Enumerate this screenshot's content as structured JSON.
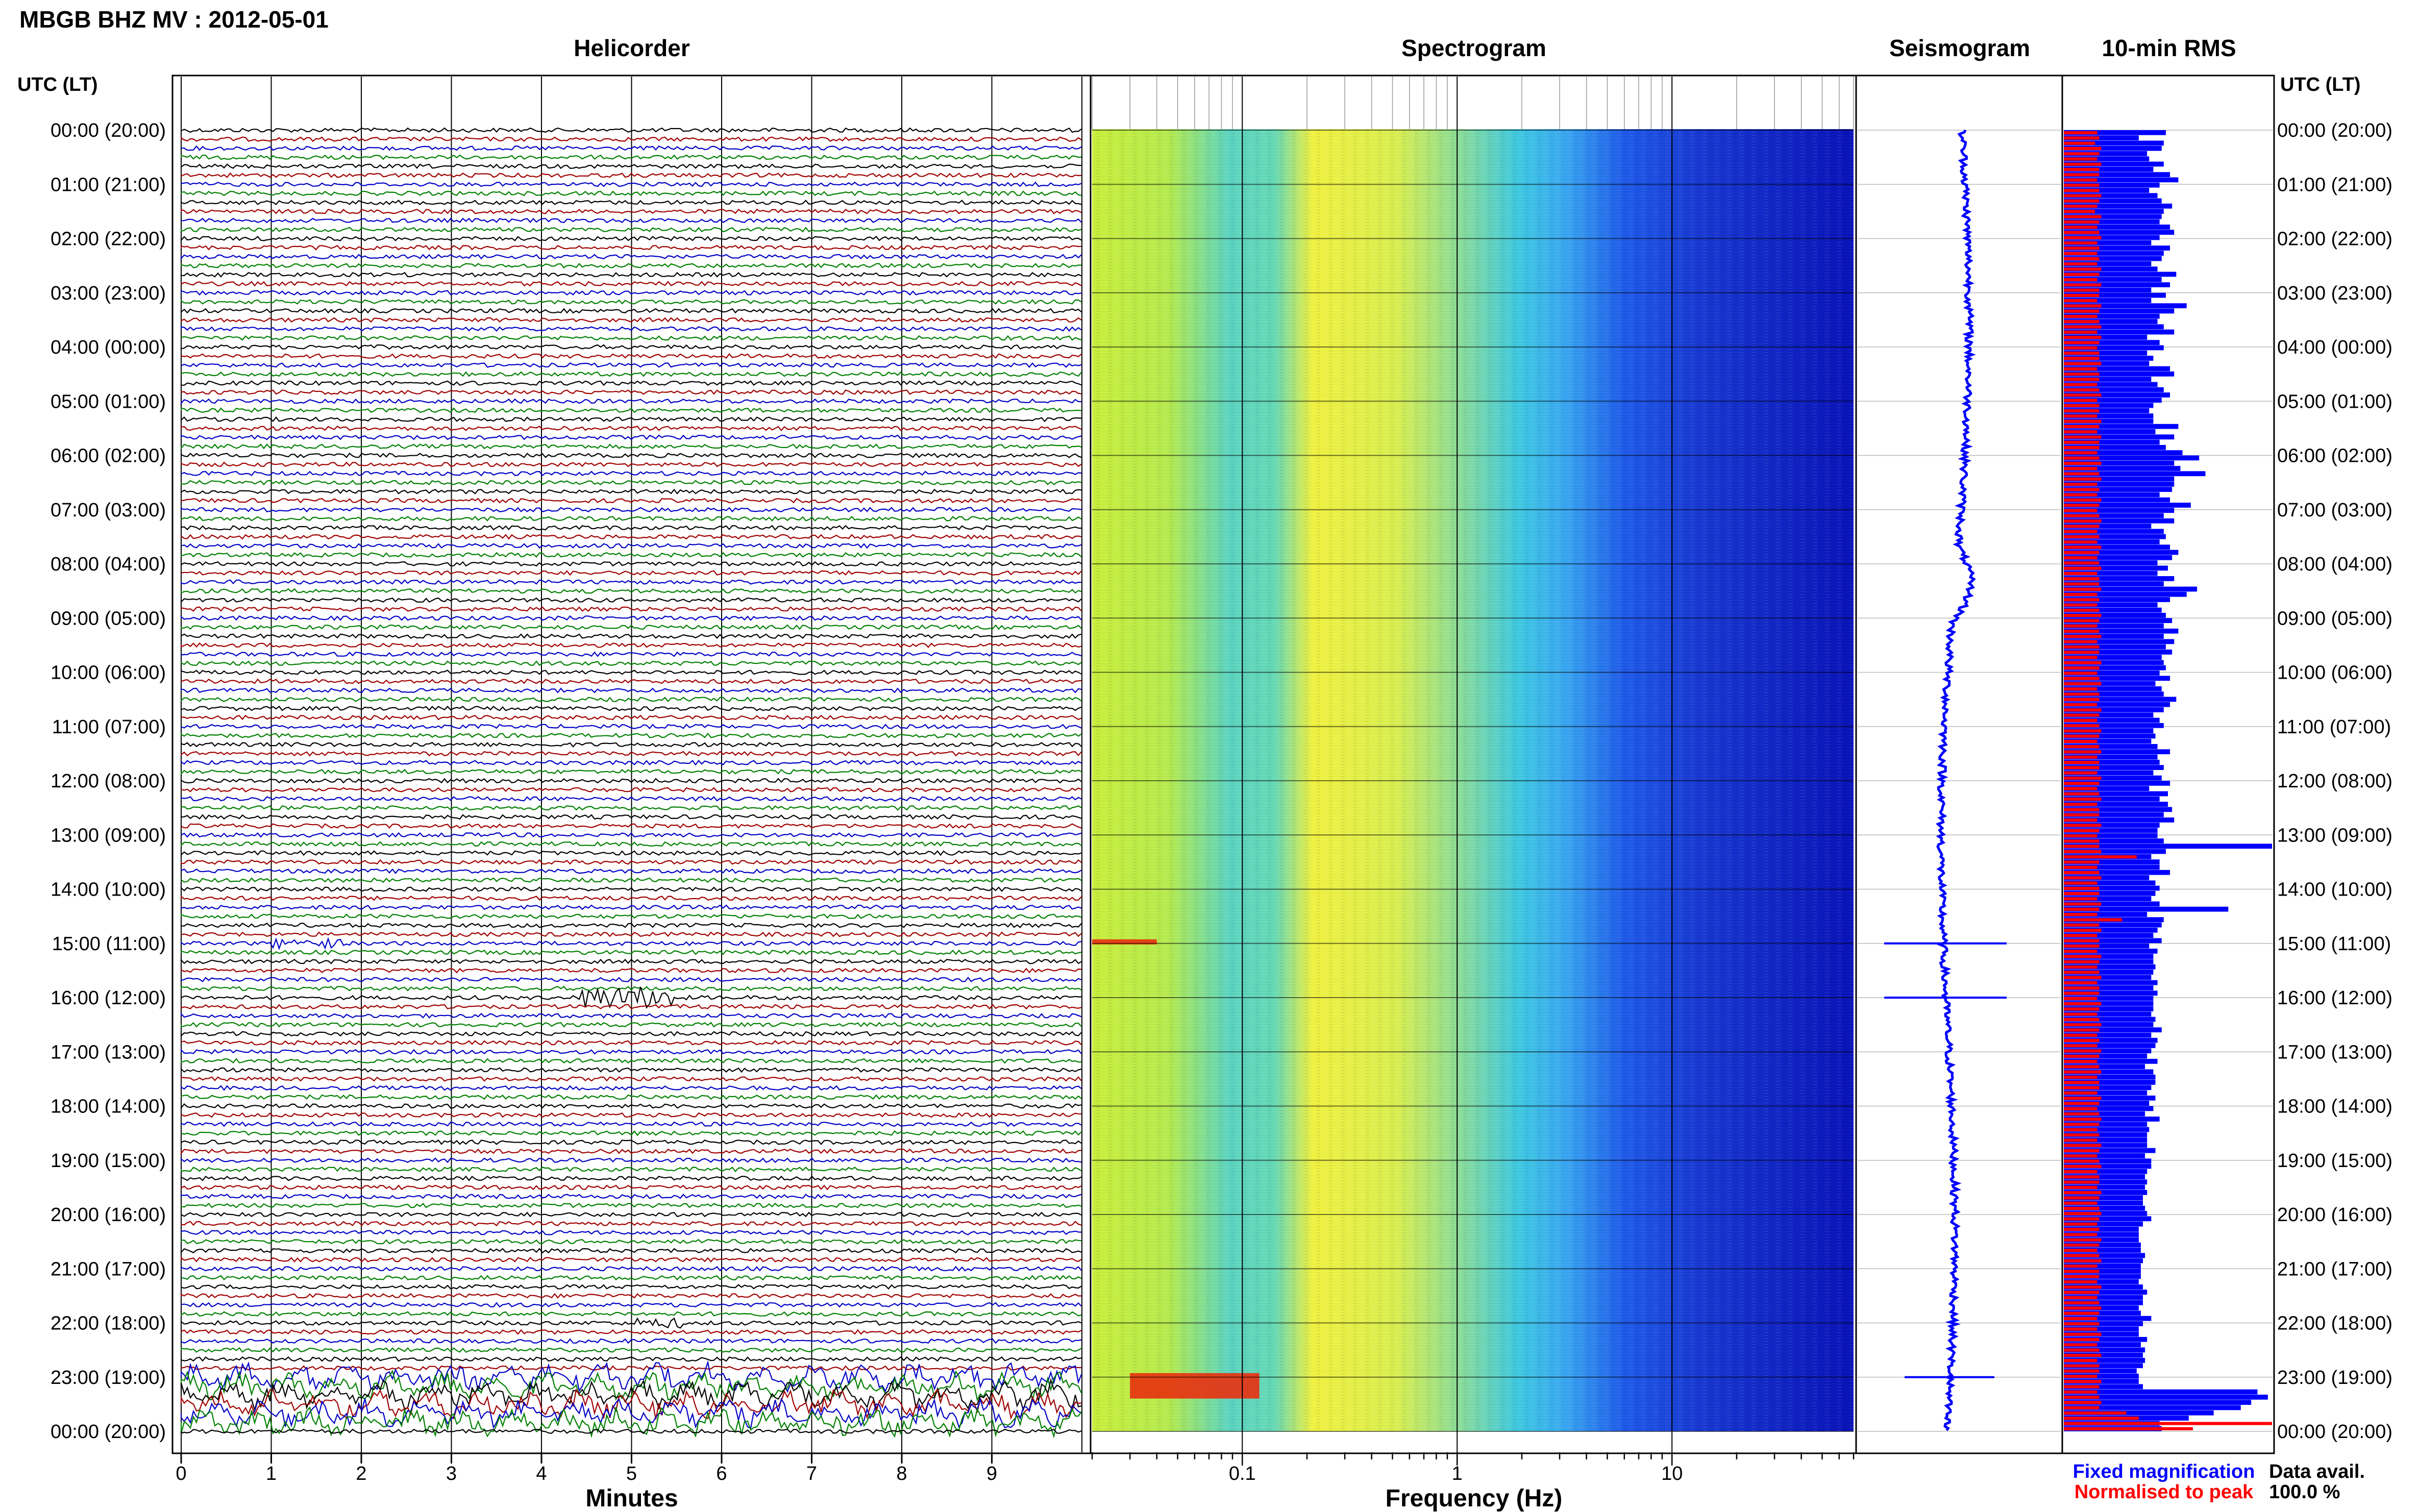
{
  "header": {
    "title": "MBGB BHZ MV : 2012-05-01",
    "utc_lt_label": "UTC (LT)",
    "utc_lt_label_right": "UTC (LT)"
  },
  "panels": {
    "helicorder": "Helicorder",
    "spectrogram": "Spectrogram",
    "seismogram": "Seismogram",
    "rms": "10-min RMS"
  },
  "time_labels": [
    "00:00 (20:00)",
    "01:00 (21:00)",
    "02:00 (22:00)",
    "03:00 (23:00)",
    "04:00 (00:00)",
    "05:00 (01:00)",
    "06:00 (02:00)",
    "07:00 (03:00)",
    "08:00 (04:00)",
    "09:00 (05:00)",
    "10:00 (06:00)",
    "11:00 (07:00)",
    "12:00 (08:00)",
    "13:00 (09:00)",
    "14:00 (10:00)",
    "15:00 (11:00)",
    "16:00 (12:00)",
    "17:00 (13:00)",
    "18:00 (14:00)",
    "19:00 (15:00)",
    "20:00 (16:00)",
    "21:00 (17:00)",
    "22:00 (18:00)",
    "23:00 (19:00)",
    "00:00 (20:00)"
  ],
  "footer": {
    "minutes_label": "Minutes",
    "frequency_label": "Frequency (Hz)",
    "fixed_mag": "Fixed magnification",
    "norm_peak": "Normalised to peak",
    "data_avail_label": "Data avail.",
    "data_avail_value": "100.0 %"
  },
  "colors": {
    "trace_cycle": [
      "#000000",
      "#a00000",
      "#0000c8",
      "#008000"
    ],
    "rms_fixed": "#0000ff",
    "rms_norm": "#ff0000",
    "seismogram": "#0000ff"
  },
  "chart_data": [
    {
      "type": "line",
      "name": "helicorder",
      "x_ticks": [
        0,
        1,
        2,
        3,
        4,
        5,
        6,
        7,
        8,
        9
      ],
      "xlim": [
        0,
        10
      ],
      "rows_per_hour": 6,
      "hours": 24,
      "events": [
        {
          "hour": 16,
          "minute_start": 4.4,
          "minute_end": 5.5,
          "color": "dark-red"
        },
        {
          "hour": 22,
          "minute_start": 5.0,
          "minute_end": 5.6,
          "color": "black"
        },
        {
          "hour": 15,
          "minute_start": 1.0,
          "minute_end": 1.8,
          "color": "green"
        },
        {
          "hour": 23,
          "minute_start": 0,
          "minute_end": 10,
          "color": "mixed"
        }
      ]
    },
    {
      "type": "heatmap",
      "name": "spectrogram",
      "x_scale": "log",
      "x_ticks": [
        0.1,
        1,
        10
      ],
      "x_tick_labels": [
        "0.1",
        "1",
        "10"
      ],
      "xlim": [
        0.02,
        70
      ],
      "hot_spots": [
        {
          "hour": 23,
          "freq_low": 0.03,
          "freq_high": 0.12,
          "level": "high"
        },
        {
          "hour": 15,
          "freq_low": 0.02,
          "freq_high": 0.04,
          "level": "high"
        }
      ]
    },
    {
      "type": "line",
      "name": "seismogram",
      "spikes": [
        {
          "hour": 15
        },
        {
          "hour": 16
        },
        {
          "hour": 23
        }
      ]
    },
    {
      "type": "bar",
      "name": "10-min RMS",
      "series": [
        {
          "name": "Fixed magnification",
          "values": [
            0.49,
            0.36,
            0.48,
            0.47,
            0.4,
            0.41,
            0.48,
            0.43,
            0.51,
            0.55,
            0.46,
            0.41,
            0.45,
            0.47,
            0.52,
            0.48,
            0.47,
            0.46,
            0.51,
            0.53,
            0.46,
            0.42,
            0.51,
            0.48,
            0.47,
            0.42,
            0.45,
            0.54,
            0.47,
            0.51,
            0.42,
            0.49,
            0.42,
            0.59,
            0.53,
            0.46,
            0.45,
            0.48,
            0.53,
            0.4,
            0.46,
            0.48,
            0.4,
            0.43,
            0.41,
            0.51,
            0.53,
            0.42,
            0.45,
            0.48,
            0.51,
            0.47,
            0.43,
            0.41,
            0.43,
            0.43,
            0.55,
            0.44,
            0.53,
            0.46,
            0.49,
            0.57,
            0.65,
            0.53,
            0.56,
            0.68,
            0.53,
            0.53,
            0.52,
            0.46,
            0.51,
            0.61,
            0.53,
            0.48,
            0.53,
            0.42,
            0.48,
            0.49,
            0.46,
            0.51,
            0.55,
            0.52,
            0.45,
            0.5,
            0.45,
            0.53,
            0.48,
            0.64,
            0.59,
            0.51,
            0.45,
            0.47,
            0.49,
            0.52,
            0.48,
            0.55,
            0.48,
            0.53,
            0.49,
            0.52,
            0.47,
            0.48,
            0.49,
            0.46,
            0.51,
            0.44,
            0.47,
            0.48,
            0.54,
            0.51,
            0.48,
            0.43,
            0.46,
            0.48,
            0.43,
            0.44,
            0.42,
            0.45,
            0.51,
            0.45,
            0.46,
            0.48,
            0.43,
            0.47,
            0.51,
            0.41,
            0.5,
            0.46,
            0.5,
            0.52,
            0.48,
            0.53,
            0.46,
            0.45,
            0.45,
            0.48,
            1.0,
            0.49,
            0.42,
            0.46,
            0.46,
            0.51,
            0.41,
            0.44,
            0.46,
            0.44,
            0.42,
            0.46,
            0.79,
            0.4,
            0.48,
            0.47,
            0.45,
            0.43,
            0.47,
            0.41,
            0.45,
            0.43,
            0.43,
            0.44,
            0.43,
            0.42,
            0.45,
            0.43,
            0.45,
            0.43,
            0.43,
            0.43,
            0.42,
            0.44,
            0.43,
            0.47,
            0.42,
            0.45,
            0.44,
            0.42,
            0.4,
            0.45,
            0.39,
            0.43,
            0.44,
            0.44,
            0.42,
            0.4,
            0.44,
            0.41,
            0.43,
            0.39,
            0.46,
            0.4,
            0.41,
            0.4,
            0.4,
            0.4,
            0.44,
            0.39,
            0.42,
            0.42,
            0.4,
            0.39,
            0.4,
            0.39,
            0.4,
            0.38,
            0.38,
            0.39,
            0.4,
            0.42,
            0.38,
            0.36,
            0.36,
            0.36,
            0.37,
            0.37,
            0.39,
            0.38,
            0.37,
            0.37,
            0.37,
            0.36,
            0.38,
            0.4,
            0.38,
            0.38,
            0.36,
            0.37,
            0.42,
            0.38,
            0.36,
            0.36,
            0.4,
            0.37,
            0.39,
            0.38,
            0.39,
            0.38,
            0.35,
            0.36,
            0.36,
            0.38,
            0.93,
            0.98,
            0.9,
            0.85,
            0.72,
            0.6,
            0.46,
            0.47
          ]
        },
        {
          "name": "Normalised to peak",
          "values": [
            0.16,
            0.17,
            0.15,
            0.18,
            0.17,
            0.16,
            0.18,
            0.17,
            0.17,
            0.16,
            0.17,
            0.17,
            0.18,
            0.17,
            0.16,
            0.15,
            0.18,
            0.17,
            0.16,
            0.17,
            0.18,
            0.16,
            0.17,
            0.16,
            0.17,
            0.16,
            0.18,
            0.17,
            0.16,
            0.18,
            0.17,
            0.17,
            0.16,
            0.18,
            0.17,
            0.16,
            0.17,
            0.18,
            0.16,
            0.18,
            0.17,
            0.16,
            0.17,
            0.17,
            0.18,
            0.16,
            0.17,
            0.17,
            0.16,
            0.17,
            0.18,
            0.16,
            0.17,
            0.17,
            0.16,
            0.18,
            0.17,
            0.16,
            0.18,
            0.17,
            0.17,
            0.16,
            0.17,
            0.18,
            0.16,
            0.17,
            0.18,
            0.16,
            0.17,
            0.16,
            0.18,
            0.17,
            0.16,
            0.17,
            0.18,
            0.17,
            0.16,
            0.17,
            0.16,
            0.18,
            0.17,
            0.16,
            0.17,
            0.18,
            0.16,
            0.17,
            0.17,
            0.18,
            0.16,
            0.17,
            0.16,
            0.17,
            0.18,
            0.17,
            0.16,
            0.17,
            0.18,
            0.16,
            0.17,
            0.17,
            0.16,
            0.18,
            0.17,
            0.16,
            0.17,
            0.18,
            0.16,
            0.17,
            0.17,
            0.16,
            0.18,
            0.17,
            0.16,
            0.17,
            0.18,
            0.17,
            0.16,
            0.17,
            0.18,
            0.16,
            0.17,
            0.17,
            0.16,
            0.18,
            0.17,
            0.16,
            0.17,
            0.18,
            0.16,
            0.17,
            0.17,
            0.16,
            0.18,
            0.17,
            0.16,
            0.17,
            0.17,
            0.18,
            0.35,
            0.17,
            0.16,
            0.17,
            0.18,
            0.16,
            0.17,
            0.17,
            0.16,
            0.18,
            0.17,
            0.16,
            0.28,
            0.17,
            0.18,
            0.16,
            0.17,
            0.17,
            0.16,
            0.18,
            0.17,
            0.16,
            0.17,
            0.18,
            0.16,
            0.17,
            0.17,
            0.16,
            0.18,
            0.17,
            0.16,
            0.17,
            0.18,
            0.17,
            0.16,
            0.17,
            0.16,
            0.18,
            0.17,
            0.16,
            0.17,
            0.18,
            0.16,
            0.17,
            0.17,
            0.16,
            0.18,
            0.17,
            0.16,
            0.17,
            0.18,
            0.17,
            0.16,
            0.17,
            0.16,
            0.18,
            0.17,
            0.16,
            0.17,
            0.18,
            0.16,
            0.17,
            0.17,
            0.16,
            0.18,
            0.17,
            0.16,
            0.17,
            0.18,
            0.17,
            0.16,
            0.17,
            0.16,
            0.18,
            0.17,
            0.16,
            0.17,
            0.18,
            0.16,
            0.17,
            0.17,
            0.16,
            0.18,
            0.17,
            0.16,
            0.17,
            0.18,
            0.17,
            0.16,
            0.17,
            0.16,
            0.18,
            0.17,
            0.16,
            0.17,
            0.18,
            0.16,
            0.17,
            0.17,
            0.16,
            0.18,
            0.17,
            0.16,
            0.17,
            0.18,
            0.17,
            0.3,
            0.36,
            1.0,
            0.62,
            0.44,
            0.2,
            0.17,
            0.16
          ]
        }
      ]
    }
  ]
}
